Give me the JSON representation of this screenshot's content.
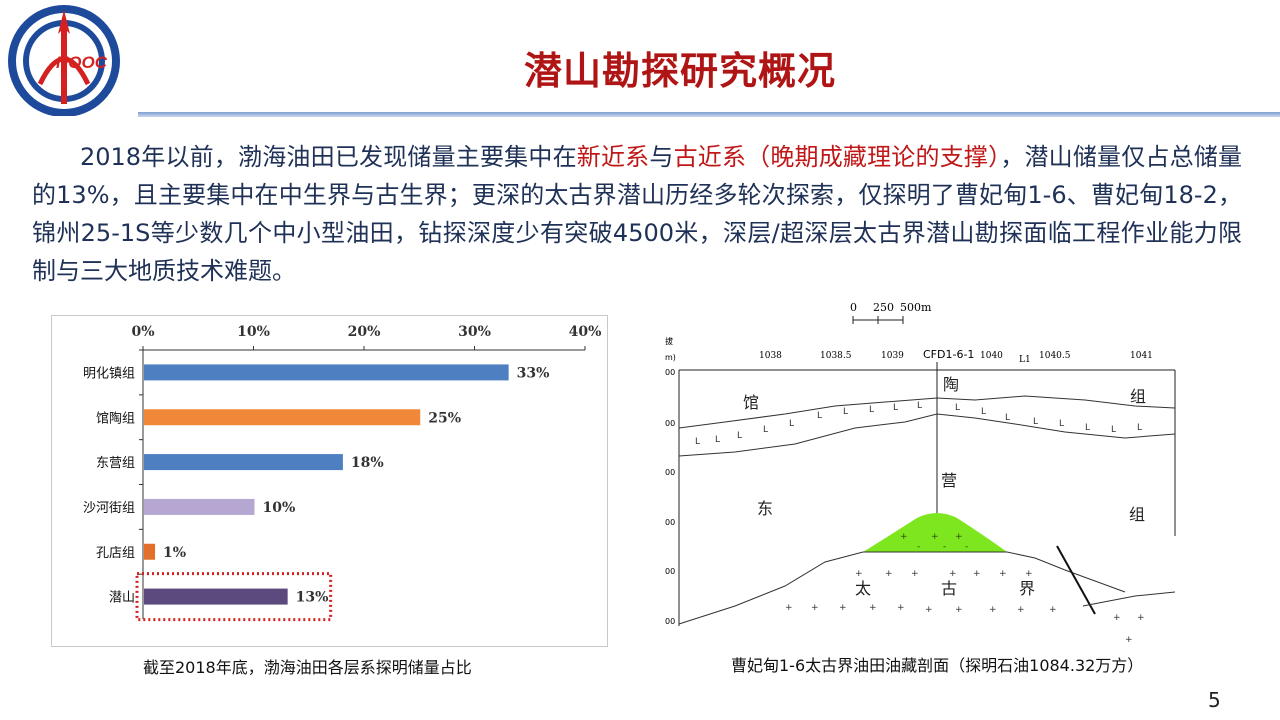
{
  "header": {
    "logo_text": "NOOC",
    "title": "潜山勘探研究概况"
  },
  "paragraph": {
    "part1": "2018年以前，渤海油田已发现储量主要集中在",
    "red1": "新近系",
    "part2": "与",
    "red2": "古近系（晚期成藏理论的支撑）",
    "part3": "，潜山储量仅占总储量的13%，且主要集中在中生界与古生界；更深的太古界潜山历经多轮次探索，仅探明了曹妃甸1-6、曹妃甸18-2，锦州25-1S等少数几个中小型油田，钻探深度少有突破4500米，深层/超深层太古界潜山勘探面临工程作业能力限制与三大地质技术难题。"
  },
  "chart_data": {
    "type": "bar",
    "orientation": "horizontal",
    "categories": [
      "明化镇组",
      "馆陶组",
      "东营组",
      "沙河街组",
      "孔店组",
      "潜山"
    ],
    "values": [
      33,
      25,
      18,
      10,
      1,
      13
    ],
    "value_labels": [
      "33%",
      "25%",
      "18%",
      "10%",
      "1%",
      "13%"
    ],
    "colors": [
      "#4e7fc0",
      "#f0883a",
      "#4e7fc0",
      "#b5a7d1",
      "#e2702a",
      "#5b4a7d"
    ],
    "x_ticks": [
      "0%",
      "10%",
      "20%",
      "30%",
      "40%"
    ],
    "xlim": [
      0,
      40
    ],
    "highlight_category": "潜山",
    "highlight_color": "#d62020"
  },
  "chart_caption": "截至2018年底，渤海油田各层系探明储量占比",
  "section": {
    "scale_labels": [
      "0",
      "250",
      "500m"
    ],
    "well_labels": [
      "1038",
      "1038.5",
      "1039",
      "CFD1-6-1",
      "1040",
      "L1",
      "1040.5",
      "1041"
    ],
    "depth_axis_top": [
      "拔",
      "m)"
    ],
    "depth_labels": [
      "00",
      "00",
      "00",
      "00",
      "00",
      "00"
    ],
    "formation_chars": [
      "馆",
      "陶",
      "组",
      "东",
      "营",
      "组",
      "太",
      "古",
      "界"
    ],
    "oil_color": "#7ee61e"
  },
  "section_caption": "曹妃甸1-6太古界油田油藏剖面（探明石油1084.32万方）",
  "page_number": "5"
}
